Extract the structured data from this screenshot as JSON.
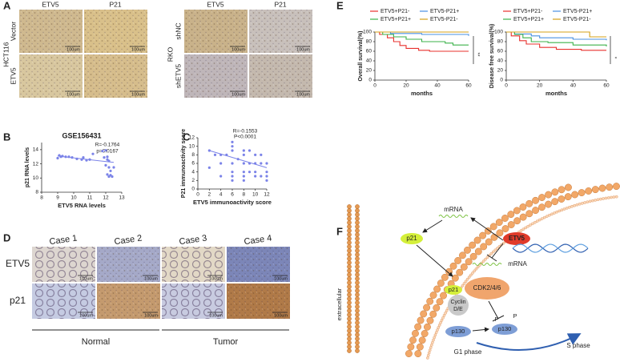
{
  "panel_labels": [
    "A",
    "B",
    "C",
    "D",
    "E",
    "F"
  ],
  "panel_a": {
    "left": {
      "cell_line": "HCT116",
      "columns": [
        "ETV5",
        "P21"
      ],
      "rows": [
        "Vector",
        "ETV5"
      ]
    },
    "right": {
      "cell_line": "RKO",
      "columns": [
        "ETV5",
        "P21"
      ],
      "rows": [
        "shNC",
        "shETV5"
      ]
    },
    "scale_bar": "100um"
  },
  "chart_data": [
    {
      "type": "scatter",
      "title": "GSE156431",
      "x_label": "ETV5 RNA levels",
      "y_label": "p21 RNA levels",
      "annotations": [
        "R=-0.1764",
        "p=0.0167"
      ],
      "color": "#7b83e8",
      "x": [
        9.0,
        9.1,
        9.2,
        9.3,
        9.5,
        9.7,
        9.9,
        10.2,
        10.5,
        10.6,
        10.8,
        11.0,
        11.2,
        11.8,
        11.9,
        12.0,
        12.1,
        12.1,
        12.2,
        12.0,
        12.2,
        12.3,
        12.1,
        12.2,
        12.3,
        12.5,
        12.4
      ],
      "values": [
        12.8,
        13.2,
        13.0,
        13.1,
        13.0,
        13.0,
        12.9,
        12.7,
        12.6,
        12.9,
        12.5,
        12.6,
        13.4,
        13.8,
        12.9,
        13.9,
        13.0,
        12.6,
        12.4,
        11.8,
        11.5,
        11.0,
        10.5,
        10.2,
        10.4,
        11.5,
        10.2
      ],
      "fit": {
        "x": [
          9,
          12.5
        ],
        "values": [
          13.1,
          12.2
        ]
      },
      "xlim": [
        8,
        13
      ],
      "xticks": [
        8,
        9,
        10,
        11,
        12,
        13
      ],
      "ylim": [
        8,
        15
      ],
      "yticks": [
        8,
        10,
        12,
        14
      ]
    },
    {
      "type": "scatter",
      "x_label": "ETV5 immunoactivity score",
      "y_label": "P21 immunoactivity score",
      "annotations": [
        "R=-0.1553",
        "P<0.0001"
      ],
      "color": "#7b83e8",
      "x": [
        2,
        3,
        4,
        4,
        5,
        6,
        6,
        6,
        6,
        6,
        6,
        7,
        8,
        8,
        8,
        8,
        8,
        9,
        9,
        9,
        10,
        10,
        10,
        10,
        11,
        11,
        11,
        12,
        12,
        12,
        12,
        6,
        4,
        2,
        8
      ],
      "values": [
        9,
        8,
        6,
        3,
        8,
        11,
        10,
        9,
        6,
        4,
        3,
        7,
        9,
        8,
        6,
        4,
        3,
        9,
        6,
        4,
        8,
        6,
        4,
        3,
        8,
        6,
        3,
        6,
        4,
        3,
        2,
        2,
        8,
        5,
        2
      ],
      "fit": {
        "x": [
          2,
          12
        ],
        "values": [
          9,
          5
        ]
      },
      "xlim": [
        0,
        12
      ],
      "xticks": [
        0,
        2,
        4,
        6,
        8,
        10,
        12
      ],
      "ylim": [
        0,
        12
      ],
      "yticks": [
        0,
        2,
        4,
        6,
        8,
        10,
        12
      ]
    },
    {
      "type": "line",
      "step": true,
      "x_label": "months",
      "y_label": "Overall survival(%)",
      "annotations": [
        "**"
      ],
      "series": [
        {
          "name": "ETV5+P21-",
          "color": "#e8312d",
          "x": [
            0,
            3,
            8,
            12,
            16,
            20,
            28,
            35,
            60
          ],
          "values": [
            100,
            95,
            88,
            80,
            72,
            66,
            62,
            60,
            60
          ]
        },
        {
          "name": "ETV5-P21+",
          "color": "#4a90e2",
          "x": [
            0,
            10,
            30,
            60
          ],
          "values": [
            100,
            97,
            95,
            92
          ]
        },
        {
          "name": "ETV5+P21+",
          "color": "#3bb24a",
          "x": [
            0,
            5,
            12,
            20,
            30,
            45,
            50,
            60
          ],
          "values": [
            100,
            95,
            90,
            85,
            80,
            77,
            73,
            73
          ]
        },
        {
          "name": "ETV5-P21-",
          "color": "#d4a017",
          "x": [
            0,
            60
          ],
          "values": [
            100,
            100
          ]
        }
      ],
      "xlim": [
        0,
        60
      ],
      "xticks": [
        0,
        20,
        40,
        60
      ],
      "ylim": [
        0,
        100
      ],
      "yticks": [
        0,
        20,
        40,
        60,
        80,
        100
      ]
    },
    {
      "type": "line",
      "step": true,
      "x_label": "months",
      "y_label": "Disease free survival(%)",
      "annotations": [
        "*"
      ],
      "series": [
        {
          "name": "ETV5+P21-",
          "color": "#e8312d",
          "x": [
            0,
            3,
            8,
            12,
            20,
            30,
            45,
            60
          ],
          "values": [
            100,
            92,
            82,
            75,
            68,
            64,
            62,
            62
          ]
        },
        {
          "name": "ETV5-P21+",
          "color": "#4a90e2",
          "x": [
            0,
            5,
            15,
            20,
            40,
            60
          ],
          "values": [
            100,
            96,
            92,
            88,
            85,
            83
          ]
        },
        {
          "name": "ETV5+P21+",
          "color": "#3bb24a",
          "x": [
            0,
            5,
            10,
            15,
            25,
            40,
            60
          ],
          "values": [
            100,
            95,
            88,
            80,
            78,
            73,
            70
          ]
        },
        {
          "name": "ETV5-P21-",
          "color": "#d4a017",
          "x": [
            0,
            50,
            60
          ],
          "values": [
            100,
            90,
            90
          ]
        }
      ],
      "xlim": [
        0,
        60
      ],
      "xticks": [
        0,
        20,
        40,
        60
      ],
      "ylim": [
        0,
        100
      ],
      "yticks": [
        0,
        20,
        40,
        60,
        80,
        100
      ]
    }
  ],
  "panel_d": {
    "columns": [
      "Case 1",
      "Case 2",
      "Case 3",
      "Case 4"
    ],
    "rows": [
      "ETV5",
      "p21"
    ],
    "groups": [
      "Normal",
      "Tumor"
    ],
    "scale_bar": "100um"
  },
  "panel_f": {
    "extracellular": "extracellular",
    "mrna": "mRNA",
    "p21": "p21",
    "etv5": "ETV5",
    "cdk": "CDK2/4/6",
    "cyclin": [
      "Cyclin",
      "D/E"
    ],
    "p130": "p130",
    "phospho": "P",
    "g1": "G1 phase",
    "s": "S phase"
  }
}
